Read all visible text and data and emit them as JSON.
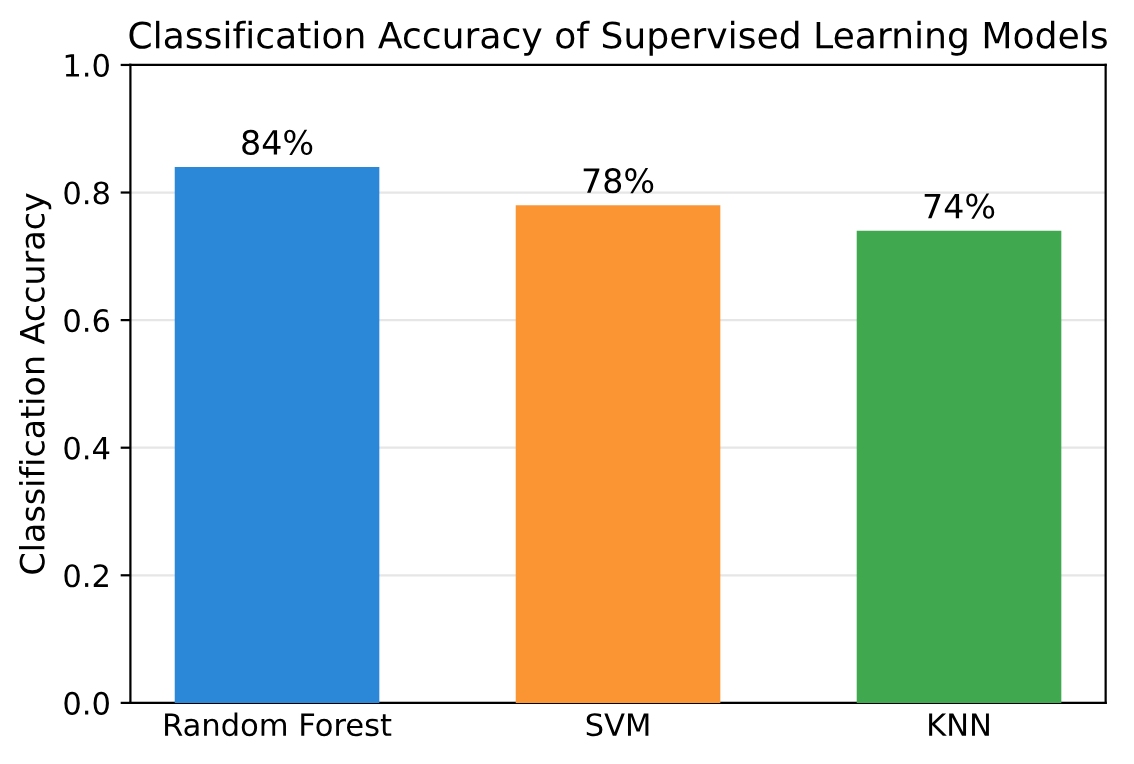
{
  "chart_data": {
    "type": "bar",
    "title": "Classification Accuracy of Supervised Learning Models",
    "ylabel": "Classification Accuracy",
    "categories": [
      "Random Forest",
      "SVM",
      "KNN"
    ],
    "values": [
      0.84,
      0.78,
      0.74
    ],
    "value_labels": [
      "84%",
      "78%",
      "74%"
    ],
    "colors": [
      "#2b87d8",
      "#fb9533",
      "#40a84f"
    ],
    "ylim": [
      0,
      1.0
    ],
    "yticks": [
      {
        "value": 0,
        "label": "0.0"
      },
      0.2,
      0.4,
      0.6,
      0.8,
      {
        "value": 1,
        "label": "1.0"
      }
    ],
    "grid": "y"
  }
}
